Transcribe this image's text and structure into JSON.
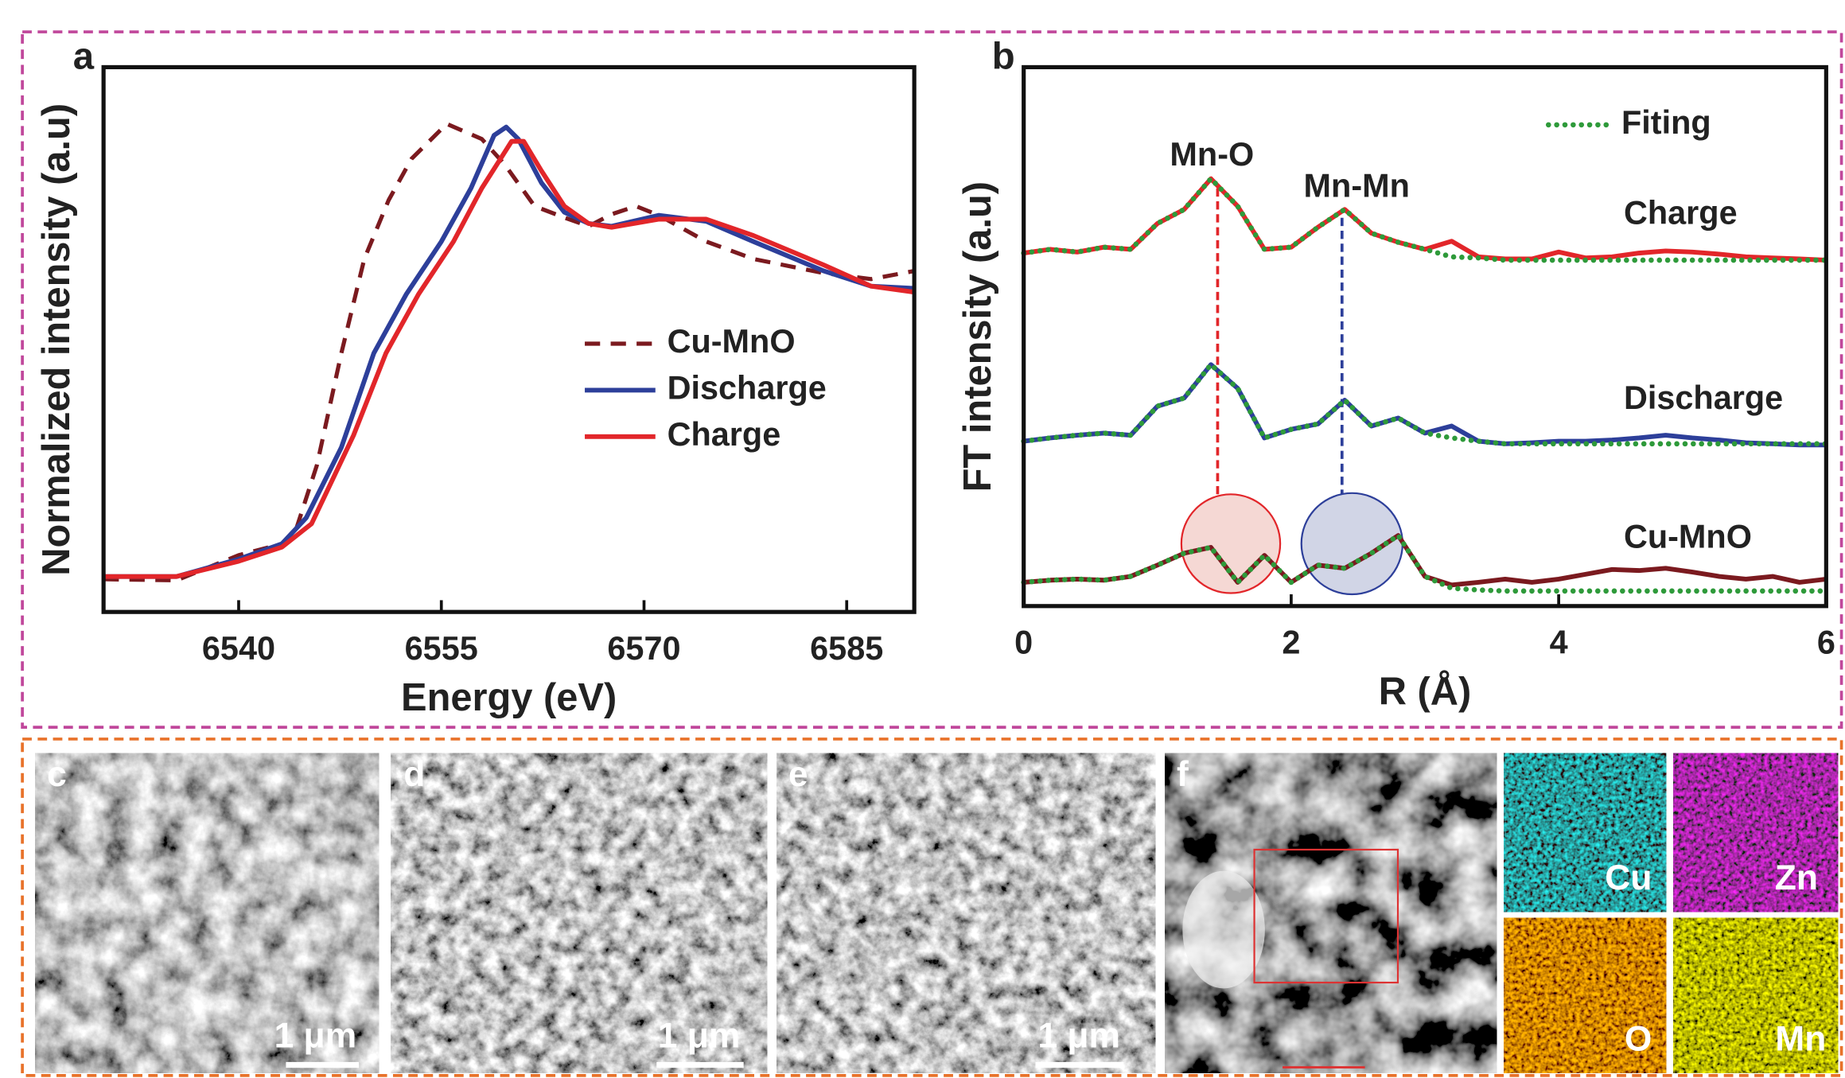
{
  "chart_data": [
    {
      "type": "line",
      "panel": "a",
      "x_label": "Energy (eV)",
      "y_label": "Normalized intensity (a.u)",
      "xlim": [
        6530,
        6590
      ],
      "xticks": [
        6540,
        6555,
        6570,
        6585
      ],
      "ylim": [
        0,
        1
      ],
      "series": [
        {
          "name": "Cu-MnO",
          "color": "#7b1a1f",
          "style": "dashed",
          "x": [
            6530,
            6535.4,
            6540,
            6543.2,
            6544.1,
            6545.8,
            6547.6,
            6549.3,
            6551.1,
            6552.8,
            6555.4,
            6558,
            6559.7,
            6561.9,
            6564.1,
            6565.9,
            6567.6,
            6569.4,
            6571.1,
            6574.6,
            6578.1,
            6583.3,
            6586.8,
            6590
          ],
          "values": [
            0.06,
            0.058,
            0.104,
            0.125,
            0.14,
            0.27,
            0.475,
            0.648,
            0.756,
            0.832,
            0.896,
            0.868,
            0.821,
            0.745,
            0.724,
            0.708,
            0.73,
            0.745,
            0.728,
            0.68,
            0.648,
            0.622,
            0.611,
            0.626
          ]
        },
        {
          "name": "Discharge",
          "color": "#2d3f9a",
          "style": "solid",
          "x": [
            6530,
            6535.4,
            6540,
            6543.2,
            6545,
            6547.6,
            6550,
            6552.4,
            6555,
            6557.2,
            6558.9,
            6559.8,
            6560.7,
            6562.4,
            6564.1,
            6565.9,
            6567.6,
            6571.1,
            6574.6,
            6578.1,
            6583.3,
            6586.8,
            6590
          ],
          "values": [
            0.065,
            0.065,
            0.097,
            0.125,
            0.173,
            0.302,
            0.475,
            0.583,
            0.68,
            0.778,
            0.875,
            0.89,
            0.868,
            0.788,
            0.734,
            0.713,
            0.708,
            0.728,
            0.717,
            0.68,
            0.626,
            0.598,
            0.594
          ]
        },
        {
          "name": "Charge",
          "color": "#e2262a",
          "style": "solid",
          "x": [
            6530,
            6535.4,
            6540,
            6543.2,
            6545.4,
            6548.5,
            6550.9,
            6553.3,
            6555.9,
            6558,
            6560.2,
            6561.1,
            6562.4,
            6564.1,
            6565.9,
            6567.6,
            6571.1,
            6574.6,
            6578.1,
            6583.3,
            6586.8,
            6590
          ],
          "values": [
            0.065,
            0.065,
            0.093,
            0.119,
            0.162,
            0.324,
            0.475,
            0.583,
            0.68,
            0.778,
            0.864,
            0.864,
            0.81,
            0.745,
            0.713,
            0.706,
            0.721,
            0.721,
            0.691,
            0.637,
            0.598,
            0.587
          ]
        }
      ]
    },
    {
      "type": "line",
      "panel": "b",
      "x_label": "R (Å)",
      "y_label": "FT intensity (a.u)",
      "xlim": [
        0,
        6
      ],
      "xticks": [
        0,
        2,
        4,
        6
      ],
      "ylim": [
        0,
        1
      ],
      "x": [
        0,
        0.2,
        0.4,
        0.6,
        0.8,
        1.0,
        1.2,
        1.4,
        1.6,
        1.8,
        2.0,
        2.2,
        2.4,
        2.6,
        2.8,
        3.0,
        3.2,
        3.4,
        3.6,
        3.8,
        4.0,
        4.2,
        4.4,
        4.6,
        4.8,
        5.0,
        5.2,
        5.4,
        5.6,
        5.8,
        6.0
      ],
      "series": [
        {
          "name": "Charge",
          "color": "#e2262a",
          "style": "solid",
          "values": [
            0.655,
            0.662,
            0.657,
            0.666,
            0.662,
            0.71,
            0.736,
            0.793,
            0.742,
            0.662,
            0.666,
            0.703,
            0.736,
            0.692,
            0.675,
            0.662,
            0.677,
            0.648,
            0.644,
            0.644,
            0.657,
            0.646,
            0.648,
            0.655,
            0.659,
            0.657,
            0.653,
            0.648,
            0.646,
            0.644,
            0.642
          ]
        },
        {
          "name": "Discharge",
          "color": "#2d3f9a",
          "style": "solid",
          "values": [
            0.306,
            0.312,
            0.317,
            0.321,
            0.317,
            0.371,
            0.386,
            0.448,
            0.404,
            0.312,
            0.328,
            0.338,
            0.382,
            0.334,
            0.349,
            0.321,
            0.334,
            0.306,
            0.301,
            0.303,
            0.306,
            0.306,
            0.308,
            0.312,
            0.317,
            0.312,
            0.308,
            0.303,
            0.301,
            0.299,
            0.299
          ]
        },
        {
          "name": "Cu-MnO",
          "color": "#7b1a1f",
          "style": "solid",
          "values": [
            0.044,
            0.048,
            0.05,
            0.048,
            0.055,
            0.076,
            0.098,
            0.109,
            0.044,
            0.094,
            0.044,
            0.076,
            0.07,
            0.098,
            0.131,
            0.055,
            0.039,
            0.044,
            0.05,
            0.044,
            0.05,
            0.059,
            0.068,
            0.066,
            0.07,
            0.063,
            0.055,
            0.05,
            0.055,
            0.044,
            0.05
          ]
        }
      ],
      "fit": {
        "name": "Fiting",
        "color": "#2e9a3a",
        "style": "dotted",
        "values": [
          [
            0.655,
            0.662,
            0.657,
            0.666,
            0.662,
            0.71,
            0.736,
            0.793,
            0.742,
            0.662,
            0.666,
            0.703,
            0.736,
            0.692,
            0.675,
            0.662,
            0.648,
            0.646,
            0.642,
            0.642,
            0.642,
            0.642,
            0.642,
            0.642,
            0.642,
            0.642,
            0.642,
            0.642,
            0.642,
            0.642,
            0.642
          ],
          [
            0.306,
            0.312,
            0.317,
            0.321,
            0.317,
            0.371,
            0.386,
            0.448,
            0.404,
            0.312,
            0.328,
            0.338,
            0.382,
            0.334,
            0.349,
            0.321,
            0.312,
            0.306,
            0.301,
            0.301,
            0.301,
            0.301,
            0.301,
            0.301,
            0.301,
            0.301,
            0.301,
            0.301,
            0.301,
            0.301,
            0.301
          ],
          [
            0.044,
            0.048,
            0.05,
            0.048,
            0.055,
            0.076,
            0.098,
            0.109,
            0.044,
            0.094,
            0.044,
            0.076,
            0.07,
            0.098,
            0.131,
            0.055,
            0.033,
            0.03,
            0.028,
            0.028,
            0.028,
            0.028,
            0.028,
            0.028,
            0.028,
            0.028,
            0.028,
            0.028,
            0.028,
            0.028,
            0.028
          ]
        ]
      },
      "ref_lines": [
        {
          "x": 1.45,
          "color": "#e2262a"
        },
        {
          "x": 2.38,
          "color": "#2d3f9a"
        }
      ],
      "annotations": [
        "Mn-O",
        "Mn-Mn"
      ]
    }
  ],
  "panels": [
    {
      "label": "c",
      "scale_bar": "1 μm"
    },
    {
      "label": "d",
      "scale_bar": "1 μm"
    },
    {
      "label": "e",
      "scale_bar": "1 μm"
    },
    {
      "label": "f"
    }
  ],
  "maps": [
    "Cu",
    "Zn",
    "O",
    "Mn"
  ]
}
